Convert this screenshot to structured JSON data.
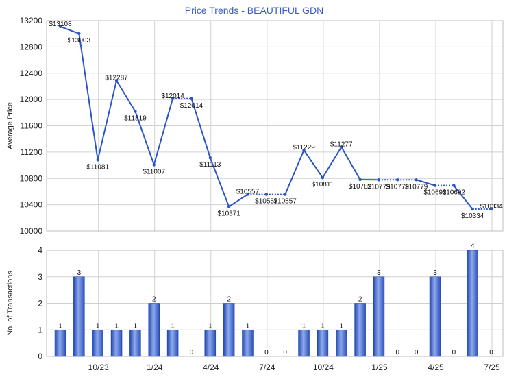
{
  "chart_data": [
    {
      "type": "line",
      "title": "Price Trends - BEAUTIFUL GDN",
      "xlabel": "",
      "ylabel": "Average Price",
      "ylim": [
        10000,
        13200
      ],
      "yticks": [
        10000,
        10400,
        10800,
        11200,
        11600,
        12000,
        12400,
        12800,
        13200
      ],
      "x_tick_labels": [
        "10/23",
        "1/24",
        "4/24",
        "7/24",
        "10/24",
        "1/25",
        "4/25",
        "7/25"
      ],
      "grid": true,
      "line_color": "#2b55c6",
      "points": [
        {
          "month": 1,
          "value": 13108,
          "label": "$13108"
        },
        {
          "month": 2,
          "value": 13003,
          "label": "$13003"
        },
        {
          "month": 3,
          "value": 11081,
          "label": "$11081"
        },
        {
          "month": 4,
          "value": 12287,
          "label": "$12287"
        },
        {
          "month": 5,
          "value": 11819,
          "label": "$11819"
        },
        {
          "month": 6,
          "value": 11007,
          "label": "$11007"
        },
        {
          "month": 7,
          "value": 12014,
          "label": "$12014"
        },
        {
          "month": 8,
          "value": 12014,
          "label": "$12014"
        },
        {
          "month": 9,
          "value": 11113,
          "label": "$11113"
        },
        {
          "month": 10,
          "value": 10371,
          "label": "$10371"
        },
        {
          "month": 11,
          "value": 10557,
          "label": "$10557"
        },
        {
          "month": 12,
          "value": 10557,
          "label": "$10557"
        },
        {
          "month": 13,
          "value": 10557,
          "label": "$10557"
        },
        {
          "month": 14,
          "value": 11229,
          "label": "$11229"
        },
        {
          "month": 15,
          "value": 10811,
          "label": "$10811"
        },
        {
          "month": 16,
          "value": 11277,
          "label": "$11277"
        },
        {
          "month": 17,
          "value": 10782,
          "label": "$10782"
        },
        {
          "month": 18,
          "value": 10779,
          "label": "$10779"
        },
        {
          "month": 19,
          "value": 10779,
          "label": "$10779"
        },
        {
          "month": 20,
          "value": 10779,
          "label": "$10779"
        },
        {
          "month": 21,
          "value": 10692,
          "label": "$10692"
        },
        {
          "month": 22,
          "value": 10692,
          "label": "$10692"
        },
        {
          "month": 23,
          "value": 10334,
          "label": "$10334"
        },
        {
          "month": 24,
          "value": 10334,
          "label": "$10334"
        }
      ]
    },
    {
      "type": "bar",
      "title": "",
      "xlabel": "",
      "ylabel": "No. of Transactions",
      "ylim": [
        0,
        4
      ],
      "yticks": [
        0,
        1,
        2,
        3,
        4
      ],
      "x_tick_labels": [
        "10/23",
        "1/24",
        "4/24",
        "7/24",
        "10/24",
        "1/25",
        "4/25",
        "7/25"
      ],
      "grid": true,
      "bar_color": "#3d63c9",
      "values": [
        1,
        3,
        1,
        1,
        1,
        2,
        1,
        0,
        1,
        2,
        1,
        0,
        0,
        1,
        1,
        1,
        2,
        3,
        0,
        0,
        3,
        0,
        4,
        0
      ]
    }
  ]
}
